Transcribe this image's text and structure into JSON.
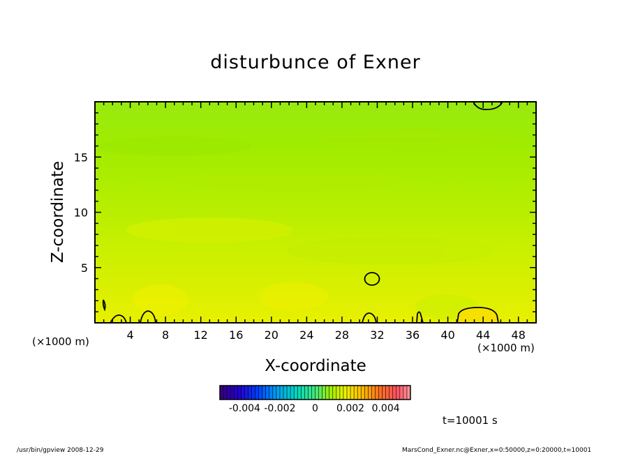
{
  "chart_data": {
    "type": "heatmap",
    "title": "disturbunce of Exner",
    "xlabel": "X-coordinate",
    "ylabel": "Z-coordinate",
    "x_unit_label": "(×1000 m)",
    "xlim": [
      0,
      50
    ],
    "ylim": [
      0,
      20
    ],
    "x_ticks": [
      "4",
      "8",
      "12",
      "16",
      "20",
      "24",
      "28",
      "32",
      "36",
      "40",
      "44",
      "48"
    ],
    "y_ticks": [
      "5",
      "10",
      "15"
    ],
    "colorbar": {
      "range": [
        -0.0054,
        0.0054
      ],
      "tick_labels": [
        "-0.004",
        "-0.002",
        "0",
        "0.002",
        "0.004"
      ],
      "tick_values": [
        -0.004,
        -0.002,
        0,
        0.002,
        0.004
      ]
    },
    "field_estimate": {
      "description_levels_z": [
        0,
        2,
        5,
        10,
        15,
        20
      ],
      "values": [
        0.0016,
        0.0013,
        0.001,
        0.0006,
        0.0003,
        0.0002
      ]
    },
    "contour_level": 0.002,
    "time_label": "t=10001 s"
  },
  "footer": {
    "left": "/usr/bin/gpview   2008-12-29",
    "right": "MarsCond_Exner.nc@Exner,x=0:50000,z=0:20000,t=10001"
  }
}
